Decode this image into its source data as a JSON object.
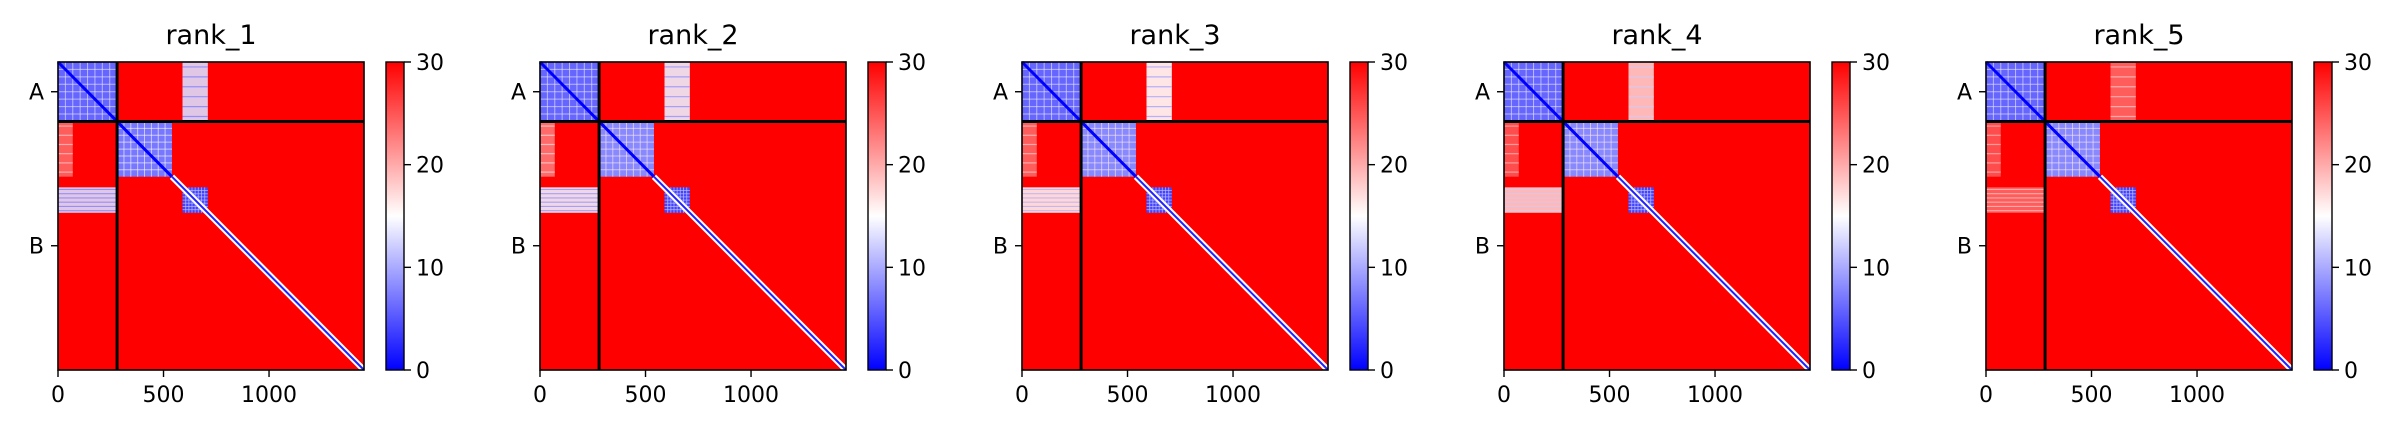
{
  "chart_data": [
    {
      "type": "heatmap",
      "title": "rank_1",
      "x_ticks": [
        0,
        500,
        1000
      ],
      "y_tick_labels": [
        "A",
        "B"
      ],
      "x_range": [
        0,
        1450
      ],
      "chain_boundary": 280,
      "colorbar": {
        "min": 0,
        "max": 30,
        "ticks": [
          0,
          10,
          20,
          30
        ],
        "colors": [
          "#0000ff",
          "#ffffff",
          "#ff0000"
        ]
      },
      "low_blocks": [
        {
          "x": [
            0,
            280
          ],
          "y": [
            0,
            280
          ],
          "value": 6
        },
        {
          "x": [
            280,
            540
          ],
          "y": [
            280,
            540
          ],
          "value": 7
        },
        {
          "x": [
            590,
            710
          ],
          "y": [
            590,
            710
          ],
          "value": 4
        }
      ],
      "mid_blocks": [
        {
          "x": [
            0,
            70
          ],
          "y": [
            280,
            540
          ],
          "value": 24
        },
        {
          "x": [
            590,
            710
          ],
          "y": [
            0,
            280
          ],
          "value": 13
        },
        {
          "x": [
            0,
            280
          ],
          "y": [
            590,
            710
          ],
          "value": 13
        }
      ],
      "diagonal_band_from": 540
    },
    {
      "type": "heatmap",
      "title": "rank_2",
      "x_ticks": [
        0,
        500,
        1000
      ],
      "y_tick_labels": [
        "A",
        "B"
      ],
      "x_range": [
        0,
        1450
      ],
      "chain_boundary": 280,
      "colorbar": {
        "min": 0,
        "max": 30,
        "ticks": [
          0,
          10,
          20,
          30
        ],
        "colors": [
          "#0000ff",
          "#ffffff",
          "#ff0000"
        ]
      },
      "low_blocks": [
        {
          "x": [
            0,
            280
          ],
          "y": [
            0,
            280
          ],
          "value": 6
        },
        {
          "x": [
            280,
            540
          ],
          "y": [
            280,
            540
          ],
          "value": 8
        },
        {
          "x": [
            590,
            710
          ],
          "y": [
            590,
            710
          ],
          "value": 4
        }
      ],
      "mid_blocks": [
        {
          "x": [
            0,
            70
          ],
          "y": [
            280,
            540
          ],
          "value": 23
        },
        {
          "x": [
            590,
            710
          ],
          "y": [
            0,
            280
          ],
          "value": 14
        },
        {
          "x": [
            0,
            280
          ],
          "y": [
            590,
            710
          ],
          "value": 14
        }
      ],
      "diagonal_band_from": 540
    },
    {
      "type": "heatmap",
      "title": "rank_3",
      "x_ticks": [
        0,
        500,
        1000
      ],
      "y_tick_labels": [
        "A",
        "B"
      ],
      "x_range": [
        0,
        1450
      ],
      "chain_boundary": 280,
      "colorbar": {
        "min": 0,
        "max": 30,
        "ticks": [
          0,
          10,
          20,
          30
        ],
        "colors": [
          "#0000ff",
          "#ffffff",
          "#ff0000"
        ]
      },
      "low_blocks": [
        {
          "x": [
            0,
            280
          ],
          "y": [
            0,
            280
          ],
          "value": 6
        },
        {
          "x": [
            280,
            540
          ],
          "y": [
            280,
            540
          ],
          "value": 8
        },
        {
          "x": [
            590,
            710
          ],
          "y": [
            590,
            710
          ],
          "value": 4
        }
      ],
      "mid_blocks": [
        {
          "x": [
            0,
            70
          ],
          "y": [
            280,
            540
          ],
          "value": 24
        },
        {
          "x": [
            590,
            710
          ],
          "y": [
            0,
            280
          ],
          "value": 15
        },
        {
          "x": [
            0,
            280
          ],
          "y": [
            590,
            710
          ],
          "value": 16
        }
      ],
      "diagonal_band_from": 540
    },
    {
      "type": "heatmap",
      "title": "rank_4",
      "x_ticks": [
        0,
        500,
        1000
      ],
      "y_tick_labels": [
        "A",
        "B"
      ],
      "x_range": [
        0,
        1450
      ],
      "chain_boundary": 280,
      "colorbar": {
        "min": 0,
        "max": 30,
        "ticks": [
          0,
          10,
          20,
          30
        ],
        "colors": [
          "#0000ff",
          "#ffffff",
          "#ff0000"
        ]
      },
      "low_blocks": [
        {
          "x": [
            0,
            280
          ],
          "y": [
            0,
            280
          ],
          "value": 6
        },
        {
          "x": [
            280,
            540
          ],
          "y": [
            280,
            540
          ],
          "value": 8
        },
        {
          "x": [
            590,
            710
          ],
          "y": [
            590,
            710
          ],
          "value": 4
        }
      ],
      "mid_blocks": [
        {
          "x": [
            0,
            70
          ],
          "y": [
            280,
            540
          ],
          "value": 25
        },
        {
          "x": [
            590,
            710
          ],
          "y": [
            0,
            280
          ],
          "value": 18
        },
        {
          "x": [
            0,
            280
          ],
          "y": [
            590,
            710
          ],
          "value": 18
        }
      ],
      "diagonal_band_from": 540
    },
    {
      "type": "heatmap",
      "title": "rank_5",
      "x_ticks": [
        0,
        500,
        1000
      ],
      "y_tick_labels": [
        "A",
        "B"
      ],
      "x_range": [
        0,
        1450
      ],
      "chain_boundary": 280,
      "colorbar": {
        "min": 0,
        "max": 30,
        "ticks": [
          0,
          10,
          20,
          30
        ],
        "colors": [
          "#0000ff",
          "#ffffff",
          "#ff0000"
        ]
      },
      "low_blocks": [
        {
          "x": [
            0,
            280
          ],
          "y": [
            0,
            280
          ],
          "value": 6
        },
        {
          "x": [
            280,
            540
          ],
          "y": [
            280,
            540
          ],
          "value": 8
        },
        {
          "x": [
            590,
            710
          ],
          "y": [
            590,
            710
          ],
          "value": 4
        }
      ],
      "mid_blocks": [
        {
          "x": [
            0,
            70
          ],
          "y": [
            280,
            540
          ],
          "value": 25
        },
        {
          "x": [
            590,
            710
          ],
          "y": [
            0,
            280
          ],
          "value": 24
        },
        {
          "x": [
            0,
            280
          ],
          "y": [
            590,
            710
          ],
          "value": 24
        }
      ],
      "diagonal_band_from": 540
    }
  ]
}
